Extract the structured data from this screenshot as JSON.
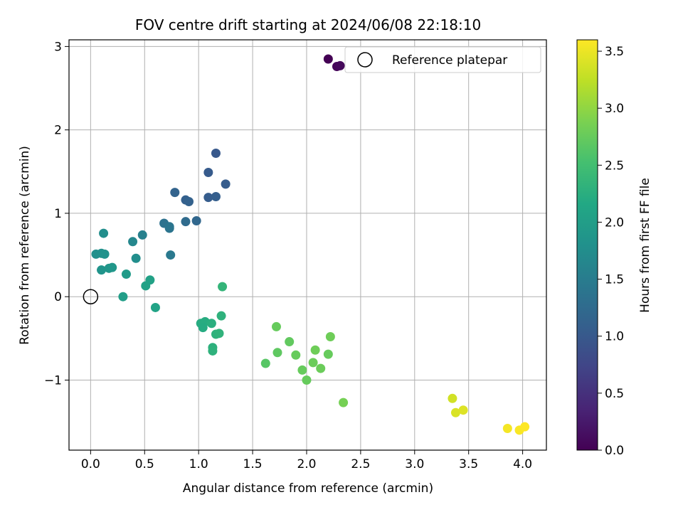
{
  "chart_data": {
    "type": "scatter",
    "title": "FOV centre drift starting at 2024/06/08 22:18:10",
    "xlabel": "Angular distance from reference (arcmin)",
    "ylabel": "Rotation from reference (arcmin)",
    "xlim": [
      -0.2,
      4.22
    ],
    "ylim": [
      -1.84,
      3.08
    ],
    "xticks": [
      0.0,
      0.5,
      1.0,
      1.5,
      2.0,
      2.5,
      3.0,
      3.5,
      4.0
    ],
    "xtick_labels": [
      "0.0",
      "0.5",
      "1.0",
      "1.5",
      "2.0",
      "2.5",
      "3.0",
      "3.5",
      "4.0"
    ],
    "yticks": [
      -1,
      0,
      1,
      2,
      3
    ],
    "ytick_labels": [
      "−1",
      "0",
      "1",
      "2",
      "3"
    ],
    "grid": true,
    "colorbar": {
      "label": "Hours from first FF file",
      "colormap": "viridis",
      "range": [
        0.0,
        3.6
      ],
      "ticks": [
        0.0,
        0.5,
        1.0,
        1.5,
        2.0,
        2.5,
        3.0,
        3.5
      ],
      "tick_labels": [
        "0.0",
        "0.5",
        "1.0",
        "1.5",
        "2.0",
        "2.5",
        "3.0",
        "3.5"
      ]
    },
    "legend": {
      "label": "Reference platepar",
      "position": "top-right"
    },
    "reference_point": {
      "x": 0.0,
      "y": 0.0
    },
    "points": [
      {
        "x": 2.2,
        "y": 2.85,
        "t": 0.0
      },
      {
        "x": 2.28,
        "y": 2.76,
        "t": 0.05
      },
      {
        "x": 2.31,
        "y": 2.77,
        "t": 0.08
      },
      {
        "x": 1.16,
        "y": 1.72,
        "t": 1.0
      },
      {
        "x": 1.09,
        "y": 1.49,
        "t": 1.02
      },
      {
        "x": 1.25,
        "y": 1.35,
        "t": 1.05
      },
      {
        "x": 1.09,
        "y": 1.19,
        "t": 1.05
      },
      {
        "x": 1.16,
        "y": 1.2,
        "t": 1.08
      },
      {
        "x": 0.88,
        "y": 1.16,
        "t": 1.1
      },
      {
        "x": 0.91,
        "y": 1.14,
        "t": 1.12
      },
      {
        "x": 0.78,
        "y": 1.25,
        "t": 1.15
      },
      {
        "x": 0.88,
        "y": 0.9,
        "t": 1.25
      },
      {
        "x": 0.98,
        "y": 0.91,
        "t": 1.2
      },
      {
        "x": 0.68,
        "y": 0.88,
        "t": 1.35
      },
      {
        "x": 0.73,
        "y": 0.82,
        "t": 1.38
      },
      {
        "x": 0.73,
        "y": 0.84,
        "t": 1.4
      },
      {
        "x": 0.74,
        "y": 0.5,
        "t": 1.45
      },
      {
        "x": 0.48,
        "y": 0.74,
        "t": 1.55
      },
      {
        "x": 0.39,
        "y": 0.66,
        "t": 1.65
      },
      {
        "x": 0.42,
        "y": 0.46,
        "t": 1.75
      },
      {
        "x": 0.12,
        "y": 0.76,
        "t": 1.75
      },
      {
        "x": 0.05,
        "y": 0.51,
        "t": 1.78
      },
      {
        "x": 0.1,
        "y": 0.52,
        "t": 1.8
      },
      {
        "x": 0.13,
        "y": 0.51,
        "t": 1.82
      },
      {
        "x": 0.1,
        "y": 0.32,
        "t": 1.85
      },
      {
        "x": 0.17,
        "y": 0.34,
        "t": 1.88
      },
      {
        "x": 0.2,
        "y": 0.35,
        "t": 1.9
      },
      {
        "x": 0.33,
        "y": 0.27,
        "t": 1.95
      },
      {
        "x": 0.3,
        "y": 0.0,
        "t": 2.0
      },
      {
        "x": 0.55,
        "y": 0.2,
        "t": 2.05
      },
      {
        "x": 0.51,
        "y": 0.13,
        "t": 2.05
      },
      {
        "x": 0.6,
        "y": -0.13,
        "t": 2.08
      },
      {
        "x": 1.22,
        "y": 0.12,
        "t": 2.35
      },
      {
        "x": 1.21,
        "y": -0.23,
        "t": 2.3
      },
      {
        "x": 1.02,
        "y": -0.32,
        "t": 2.22
      },
      {
        "x": 1.06,
        "y": -0.3,
        "t": 2.22
      },
      {
        "x": 1.04,
        "y": -0.37,
        "t": 2.2
      },
      {
        "x": 1.12,
        "y": -0.32,
        "t": 2.25
      },
      {
        "x": 1.16,
        "y": -0.45,
        "t": 2.3
      },
      {
        "x": 1.19,
        "y": -0.44,
        "t": 2.32
      },
      {
        "x": 1.13,
        "y": -0.61,
        "t": 2.28
      },
      {
        "x": 1.13,
        "y": -0.65,
        "t": 2.3
      },
      {
        "x": 1.72,
        "y": -0.36,
        "t": 2.75
      },
      {
        "x": 1.73,
        "y": -0.67,
        "t": 2.7
      },
      {
        "x": 1.62,
        "y": -0.8,
        "t": 2.65
      },
      {
        "x": 1.84,
        "y": -0.54,
        "t": 2.72
      },
      {
        "x": 1.9,
        "y": -0.7,
        "t": 2.75
      },
      {
        "x": 1.96,
        "y": -0.88,
        "t": 2.75
      },
      {
        "x": 2.0,
        "y": -1.0,
        "t": 2.75
      },
      {
        "x": 2.06,
        "y": -0.79,
        "t": 2.78
      },
      {
        "x": 2.08,
        "y": -0.64,
        "t": 2.8
      },
      {
        "x": 2.13,
        "y": -0.86,
        "t": 2.78
      },
      {
        "x": 2.2,
        "y": -0.69,
        "t": 2.75
      },
      {
        "x": 2.22,
        "y": -0.48,
        "t": 2.8
      },
      {
        "x": 2.34,
        "y": -1.27,
        "t": 2.85
      },
      {
        "x": 3.35,
        "y": -1.22,
        "t": 3.35
      },
      {
        "x": 3.38,
        "y": -1.39,
        "t": 3.4
      },
      {
        "x": 3.45,
        "y": -1.36,
        "t": 3.42
      },
      {
        "x": 3.86,
        "y": -1.58,
        "t": 3.55
      },
      {
        "x": 3.97,
        "y": -1.6,
        "t": 3.58
      },
      {
        "x": 4.02,
        "y": -1.56,
        "t": 3.6
      }
    ]
  }
}
